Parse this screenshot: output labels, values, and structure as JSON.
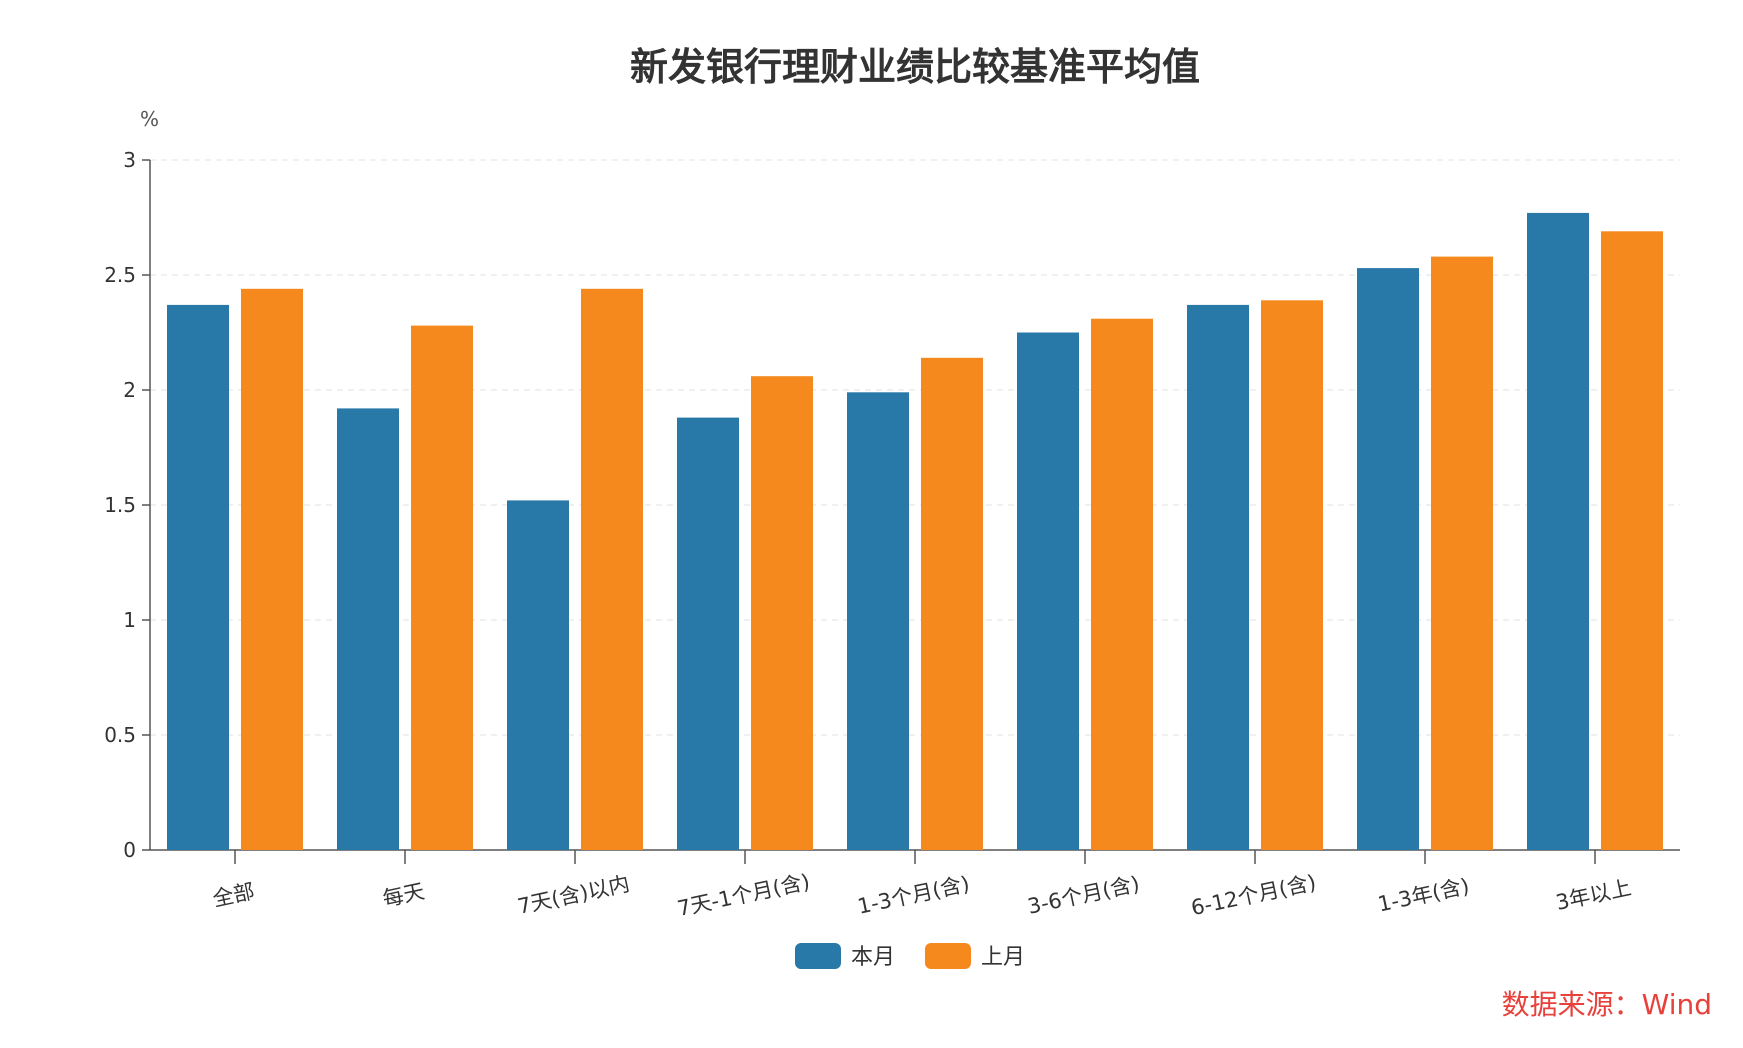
{
  "chart_data": {
    "type": "bar",
    "title": "新发银行理财业绩比较基准平均值",
    "ylabel": "%",
    "ylim": [
      0,
      3
    ],
    "yticks": [
      "0",
      "0.5",
      "1",
      "1.5",
      "2",
      "2.5",
      "3"
    ],
    "grid": true,
    "legend_position": "bottom-center",
    "categories": [
      "全部",
      "每天",
      "7天(含)以内",
      "7天-1个月(含)",
      "1-3个月(含)",
      "3-6个月(含)",
      "6-12个月(含)",
      "1-3年(含)",
      "3年以上"
    ],
    "series": [
      {
        "name": "本月",
        "color": "#2878a8",
        "values": [
          2.37,
          1.92,
          1.52,
          1.88,
          1.99,
          2.25,
          2.37,
          2.53,
          2.77
        ]
      },
      {
        "name": "上月",
        "color": "#f5891e",
        "values": [
          2.44,
          2.28,
          2.44,
          2.06,
          2.14,
          2.31,
          2.39,
          2.58,
          2.69
        ]
      }
    ]
  },
  "source_note": "数据来源：Wind"
}
